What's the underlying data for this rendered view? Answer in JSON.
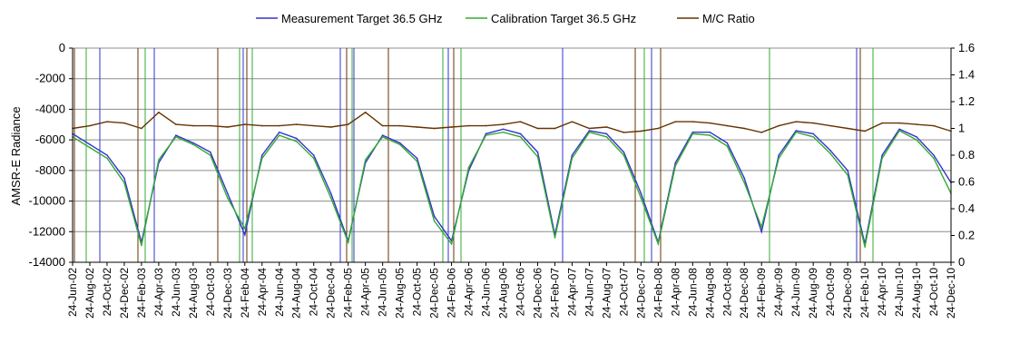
{
  "chart_data": {
    "type": "line",
    "title": "",
    "xlabel": "",
    "ylabel": "AMSR-E Radiance",
    "y2label": "",
    "ylim": [
      -14000,
      0
    ],
    "y2lim": [
      0,
      1.6
    ],
    "yticks": [
      0,
      -2000,
      -4000,
      -6000,
      -8000,
      -10000,
      -12000,
      -14000
    ],
    "y2ticks": [
      0,
      0.2,
      0.4,
      0.6,
      0.8,
      1,
      1.2,
      1.4,
      1.6
    ],
    "y2tick_labels": [
      "0",
      "0.2",
      "0.4",
      "0.6",
      "0.8",
      "1",
      "1.2",
      "1.4",
      "1.6"
    ],
    "grid": true,
    "legend_position": "top",
    "x_tick_labels": [
      "24-Jun-02",
      "24-Aug-02",
      "24-Oct-02",
      "24-Dec-02",
      "24-Feb-03",
      "24-Apr-03",
      "24-Jun-03",
      "24-Aug-03",
      "24-Oct-03",
      "24-Dec-03",
      "24-Feb-04",
      "24-Apr-04",
      "24-Jun-04",
      "24-Aug-04",
      "24-Oct-04",
      "24-Dec-04",
      "24-Feb-05",
      "24-Apr-05",
      "24-Jun-05",
      "24-Aug-05",
      "24-Oct-05",
      "24-Dec-05",
      "24-Feb-06",
      "24-Apr-06",
      "24-Jun-06",
      "24-Aug-06",
      "24-Oct-06",
      "24-Dec-06",
      "24-Feb-07",
      "24-Apr-07",
      "24-Jun-07",
      "24-Aug-07",
      "24-Oct-07",
      "24-Dec-07",
      "24-Feb-08",
      "24-Apr-08",
      "24-Jun-08",
      "24-Aug-08",
      "24-Oct-08",
      "24-Dec-08",
      "24-Feb-09",
      "24-Apr-09",
      "24-Jun-09",
      "24-Aug-09",
      "24-Oct-09",
      "24-Dec-09",
      "24-Feb-10",
      "24-Apr-10",
      "24-Jun-10",
      "24-Aug-10",
      "24-Oct-10",
      "24-Dec-10"
    ],
    "series": [
      {
        "name": "Measurement Target 36.5 GHz",
        "axis": "left",
        "color": "#3333cc",
        "x": [
          0,
          1,
          2,
          3,
          4,
          5,
          6,
          7,
          8,
          9,
          10,
          11,
          12,
          13,
          14,
          15,
          16,
          17,
          18,
          19,
          20,
          21,
          22,
          23,
          24,
          25,
          26,
          27,
          28,
          29,
          30,
          31,
          32,
          33,
          34,
          35,
          36,
          37,
          38,
          39,
          40,
          41,
          42,
          43,
          44,
          45,
          46,
          47,
          48,
          49,
          50,
          51
        ],
        "values": [
          -5600,
          -6300,
          -7000,
          -8500,
          -12700,
          -7500,
          -5700,
          -6200,
          -6800,
          -9500,
          -12200,
          -7000,
          -5500,
          -5900,
          -7000,
          -9500,
          -12600,
          -7500,
          -5700,
          -6200,
          -7200,
          -11000,
          -12600,
          -8000,
          -5600,
          -5300,
          -5600,
          -6800,
          -12200,
          -7000,
          -5400,
          -5600,
          -6800,
          -9500,
          -12700,
          -7500,
          -5500,
          -5500,
          -6200,
          -8500,
          -12000,
          -7000,
          -5400,
          -5600,
          -6700,
          -8000,
          -12800,
          -7000,
          -5300,
          -5800,
          -7000,
          -8800
        ]
      },
      {
        "name": "Calibration Target 36.5 GHz",
        "axis": "left",
        "color": "#33aa33",
        "x": [
          0,
          1,
          2,
          3,
          4,
          5,
          6,
          7,
          8,
          9,
          10,
          11,
          12,
          13,
          14,
          15,
          16,
          17,
          18,
          19,
          20,
          21,
          22,
          23,
          24,
          25,
          26,
          27,
          28,
          29,
          30,
          31,
          32,
          33,
          34,
          35,
          36,
          37,
          38,
          39,
          40,
          41,
          42,
          43,
          44,
          45,
          46,
          47,
          48,
          49,
          50,
          51
        ],
        "values": [
          -5800,
          -6500,
          -7200,
          -8800,
          -12900,
          -7300,
          -5800,
          -6300,
          -7000,
          -9800,
          -11800,
          -7200,
          -5700,
          -6100,
          -7200,
          -9800,
          -12700,
          -7300,
          -5800,
          -6300,
          -7400,
          -11300,
          -12800,
          -7800,
          -5700,
          -5500,
          -5800,
          -7100,
          -12400,
          -7200,
          -5500,
          -5800,
          -7000,
          -9800,
          -12800,
          -7700,
          -5600,
          -5700,
          -6400,
          -8800,
          -11700,
          -7200,
          -5500,
          -5800,
          -6900,
          -8300,
          -13000,
          -7200,
          -5400,
          -6000,
          -7200,
          -9500
        ]
      },
      {
        "name": "M/C Ratio",
        "axis": "right",
        "color": "#663300",
        "x": [
          0,
          1,
          2,
          3,
          4,
          5,
          6,
          7,
          8,
          9,
          10,
          11,
          12,
          13,
          14,
          15,
          16,
          17,
          18,
          19,
          20,
          21,
          22,
          23,
          24,
          25,
          26,
          27,
          28,
          29,
          30,
          31,
          32,
          33,
          34,
          35,
          36,
          37,
          38,
          39,
          40,
          41,
          42,
          43,
          44,
          45,
          46,
          47,
          48,
          49,
          50,
          51
        ],
        "values": [
          1.0,
          1.02,
          1.05,
          1.04,
          1.0,
          1.12,
          1.03,
          1.02,
          1.02,
          1.01,
          1.03,
          1.02,
          1.02,
          1.03,
          1.02,
          1.01,
          1.03,
          1.12,
          1.02,
          1.02,
          1.01,
          1.0,
          1.01,
          1.02,
          1.02,
          1.03,
          1.05,
          1.0,
          1.0,
          1.05,
          1.0,
          1.01,
          0.97,
          0.98,
          1.0,
          1.05,
          1.05,
          1.04,
          1.02,
          1.0,
          0.97,
          1.02,
          1.05,
          1.04,
          1.02,
          1.0,
          0.98,
          1.04,
          1.04,
          1.03,
          1.02,
          0.98
        ]
      }
    ]
  }
}
